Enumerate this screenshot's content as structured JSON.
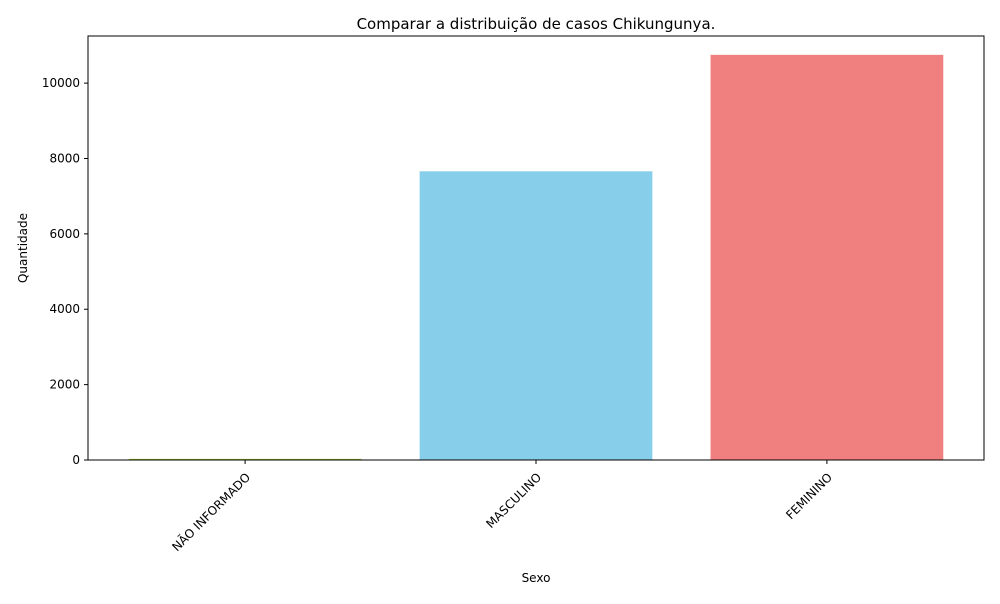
{
  "chart_data": {
    "type": "bar",
    "title": "Comparar a distribuição de casos Chikungunya.",
    "xlabel": "Sexo",
    "ylabel": "Quantidade",
    "categories": [
      "NÃO INFORMADO",
      "MASCULINO",
      "FEMININO"
    ],
    "values": [
      30,
      7660,
      10750
    ],
    "colors": [
      "#9acd32",
      "#87ceeb",
      "#f08080"
    ],
    "ylim": [
      0,
      11250
    ],
    "yticks": [
      0,
      2000,
      4000,
      6000,
      8000,
      10000
    ],
    "ytick_labels": [
      "0",
      "2000",
      "4000",
      "6000",
      "8000",
      "10000"
    ],
    "grid": false,
    "legend": "none",
    "xtick_rotation_deg": 45
  }
}
